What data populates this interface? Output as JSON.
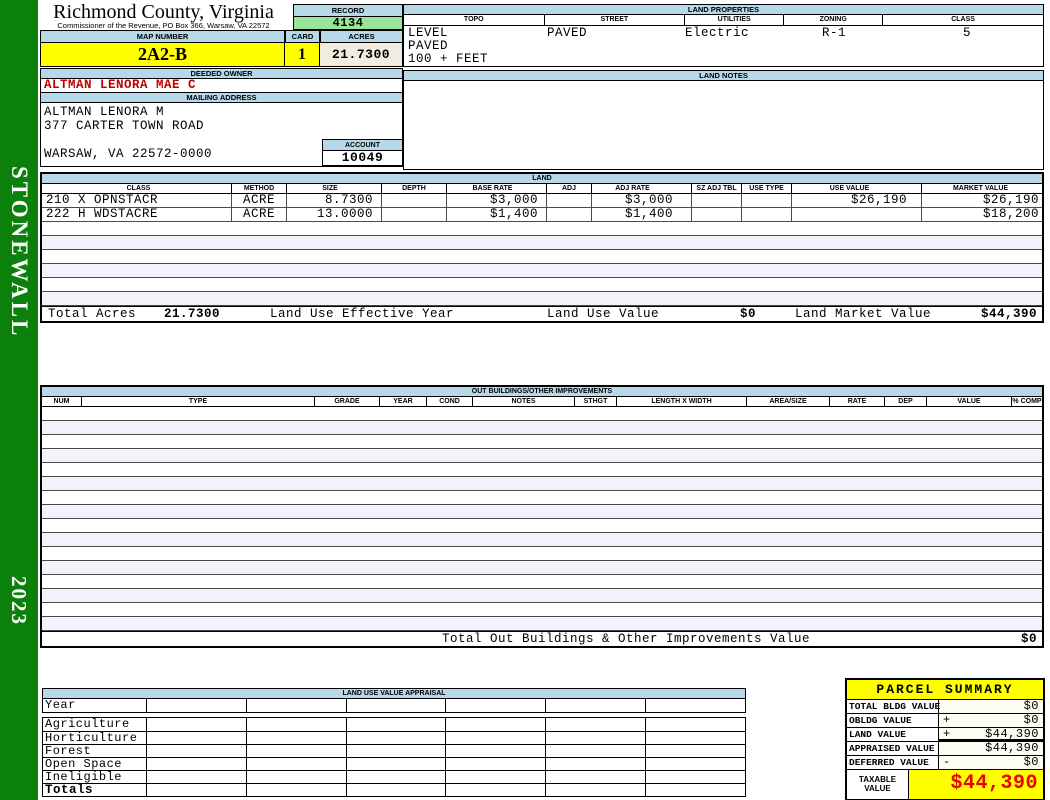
{
  "colors": {
    "green_strip": "#0b800b",
    "header_blue": "#b6d8e8",
    "record_green": "#99e699",
    "highlight_yellow": "#ffff00",
    "cream": "#f0ede0",
    "owner_red": "#c00000",
    "taxable_red": "#ee0000",
    "alt_row": "#f1f2fa"
  },
  "sidebar": {
    "district": "STONEWALL",
    "year": "2023"
  },
  "header": {
    "county": "Richmond County, Virginia",
    "commissioner": "Commissioner of the Revenue, PO Box 366, Warsaw, VA 22572",
    "record_label": "RECORD",
    "record": "4134",
    "map_number_label": "MAP NUMBER",
    "map_number": "2A2-B",
    "card_label": "CARD",
    "card": "1",
    "acres_label": "ACRES",
    "acres": "21.7300"
  },
  "land_properties": {
    "title": "LAND PROPERTIES",
    "columns": [
      "TOPO",
      "STREET",
      "UTILITIES",
      "ZONING",
      "CLASS"
    ],
    "topo_lines": [
      "LEVEL",
      "PAVED",
      "100 + FEET"
    ],
    "street": "PAVED",
    "utilities": "Electric",
    "zoning": "R-1",
    "class": "5"
  },
  "owner": {
    "deeded_owner_label": "DEEDED OWNER",
    "deeded_owner": "ALTMAN LENORA MAE C",
    "mailing_address_label": "MAILING ADDRESS",
    "mailing_lines": [
      "ALTMAN LENORA M",
      "377 CARTER TOWN ROAD",
      "",
      "WARSAW, VA 22572-0000"
    ],
    "account_label": "ACCOUNT",
    "account": "10049"
  },
  "land_notes": {
    "title": "LAND NOTES"
  },
  "land": {
    "title": "LAND",
    "columns": [
      "CLASS",
      "METHOD",
      "SIZE",
      "DEPTH",
      "BASE RATE",
      "ADJ",
      "ADJ RATE",
      "SZ ADJ TBL",
      "USE TYPE",
      "USE VALUE",
      "MARKET VALUE"
    ],
    "rows": [
      {
        "class": "210 X OPNSTACR",
        "method": "ACRE",
        "size": "8.7300",
        "depth": "",
        "base_rate": "$3,000",
        "adj": "",
        "adj_rate": "$3,000",
        "sz_adj_tbl": "",
        "use_type": "",
        "use_value": "$26,190",
        "market_value": "$26,190"
      },
      {
        "class": "222 H WDSTACRE",
        "method": "ACRE",
        "size": "13.0000",
        "depth": "",
        "base_rate": "$1,400",
        "adj": "",
        "adj_rate": "$1,400",
        "sz_adj_tbl": "",
        "use_type": "",
        "use_value": "",
        "market_value": "$18,200"
      }
    ],
    "empty_row_count": 6,
    "totals": {
      "total_acres_label": "Total Acres",
      "total_acres": "21.7300",
      "effective_year_label": "Land Use Effective Year",
      "use_value_label": "Land Use Value",
      "use_value": "$0",
      "market_value_label": "Land Market Value",
      "market_value": "$44,390"
    }
  },
  "out_buildings": {
    "title": "OUT BUILDINGS/OTHER IMPROVEMENTS",
    "columns": [
      "NUM",
      "TYPE",
      "GRADE",
      "YEAR",
      "COND",
      "NOTES",
      "STHGT",
      "LENGTH X WIDTH",
      "AREA/SIZE",
      "RATE",
      "DEP",
      "VALUE",
      "% COMP"
    ],
    "empty_row_count": 16,
    "total_label": "Total Out Buildings & Other Improvements Value",
    "total_value": "$0"
  },
  "land_use_appraisal": {
    "title": "LAND USE VALUE APPRAISAL",
    "row_labels": [
      "Year",
      "Agriculture",
      "Horticulture",
      "Forest",
      "Open Space",
      "Ineligible",
      "Totals"
    ],
    "column_count": 6
  },
  "parcel_summary": {
    "title": "PARCEL SUMMARY",
    "rows": [
      {
        "label": "TOTAL BLDG VALUE",
        "op": "",
        "value": "$0"
      },
      {
        "label": "OBLDG VALUE",
        "op": "+",
        "value": "$0"
      },
      {
        "label": "LAND VALUE",
        "op": "+",
        "value": "$44,390"
      },
      {
        "label": "APPRAISED VALUE",
        "op": "",
        "value": "$44,390"
      },
      {
        "label": "DEFERRED VALUE",
        "op": "-",
        "value": "$0"
      }
    ],
    "taxable_label": "TAXABLE VALUE",
    "taxable_value": "$44,390"
  }
}
